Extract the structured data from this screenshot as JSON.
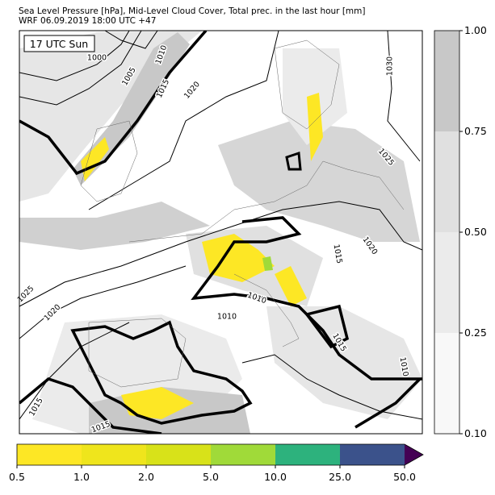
{
  "header": {
    "title": "Sea Level Pressure [hPa], Mid-Level Cloud Cover, Total prec. in the last hour [mm]",
    "subtitle": "WRF 06.09.2019 18:00 UTC +47"
  },
  "map": {
    "time_label": "17 UTC Sun",
    "isobar_labels": [
      "1000",
      "1005",
      "1010",
      "1015",
      "1020",
      "1030",
      "1025",
      "1020",
      "1015",
      "1010",
      "1010",
      "1025",
      "1020",
      "1015",
      "1015",
      "1015",
      "1010"
    ]
  },
  "cloud_colorbar": {
    "ticks": [
      "0.10",
      "0.25",
      "0.50",
      "0.75",
      "1.00"
    ]
  },
  "precip_colorbar": {
    "ticks": [
      "0.5",
      "1.0",
      "2.0",
      "5.0",
      "10.0",
      "25.0",
      "50.0"
    ]
  }
}
